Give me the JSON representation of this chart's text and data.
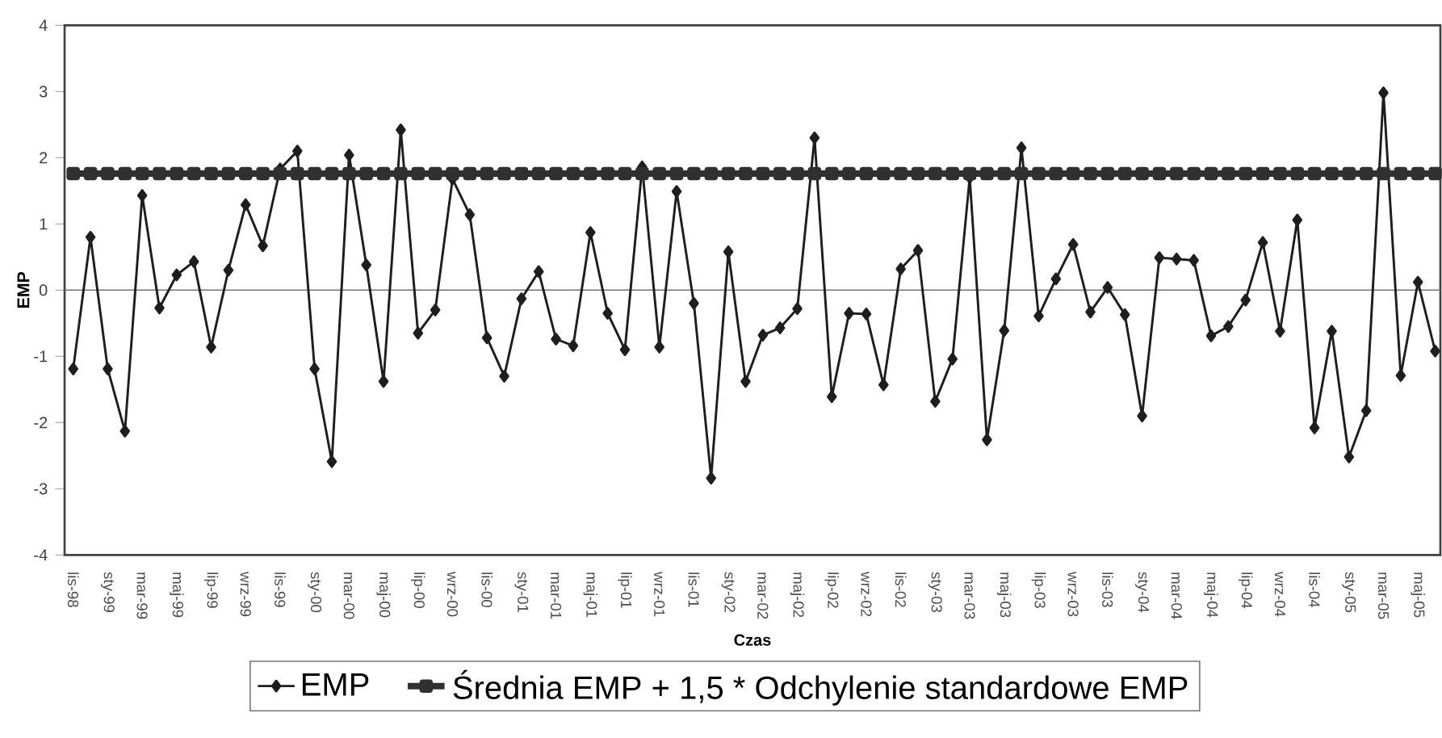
{
  "chart_data": {
    "type": "line",
    "xlabel": "Czas",
    "ylabel": "EMP",
    "categories": [
      "lis-98",
      null,
      "sty-99",
      null,
      "mar-99",
      null,
      "maj-99",
      null,
      "lip-99",
      null,
      "wrz-99",
      null,
      "lis-99",
      null,
      "sty-00",
      null,
      "mar-00",
      null,
      "maj-00",
      null,
      "lip-00",
      null,
      "wrz-00",
      null,
      "lis-00",
      null,
      "sty-01",
      null,
      "mar-01",
      null,
      "maj-01",
      null,
      "lip-01",
      null,
      "wrz-01",
      null,
      "lis-01",
      null,
      "sty-02",
      null,
      "mar-02",
      null,
      "maj-02",
      null,
      "lip-02",
      null,
      "wrz-02",
      null,
      "lis-02",
      null,
      "sty-03",
      null,
      "mar-03",
      null,
      "maj-03",
      null,
      "lip-03",
      null,
      "wrz-03",
      null,
      "lis-03",
      null,
      "sty-04",
      null,
      "mar-04",
      null,
      "maj-04",
      null,
      "lip-04",
      null,
      "wrz-04",
      null,
      "lis-04",
      null,
      "sty-05",
      null,
      "mar-05",
      null,
      "maj-05",
      null
    ],
    "series": [
      {
        "name": "EMP",
        "color": "#1e1e1e",
        "marker": "diamond",
        "values": [
          -1.19,
          0.8,
          -1.19,
          -2.13,
          1.43,
          -0.27,
          0.23,
          0.43,
          -0.86,
          0.3,
          1.29,
          0.67,
          1.83,
          2.1,
          -1.19,
          -2.59,
          2.04,
          0.38,
          -1.38,
          2.42,
          -0.65,
          -0.3,
          1.68,
          1.14,
          -0.72,
          -1.3,
          -0.13,
          0.28,
          -0.74,
          -0.84,
          0.87,
          -0.35,
          -0.9,
          1.86,
          -0.86,
          1.49,
          -0.2,
          -2.84,
          0.58,
          -1.38,
          -0.68,
          -0.57,
          -0.28,
          2.3,
          -1.61,
          -0.35,
          -0.36,
          -1.43,
          0.32,
          0.6,
          -1.68,
          -1.04,
          1.7,
          -2.26,
          -0.61,
          2.15,
          -0.39,
          0.17,
          0.69,
          -0.33,
          0.04,
          -0.37,
          -1.9,
          0.49,
          0.47,
          0.45,
          -0.69,
          -0.55,
          -0.15,
          0.72,
          -0.62,
          1.06,
          -2.08,
          -0.62,
          -2.52,
          -1.82,
          2.98,
          -1.29,
          0.12,
          -0.92
        ]
      },
      {
        "name": "Średnia EMP + 1,5 * Odchylenie standardowe EMP",
        "color": "#303030",
        "marker": "square",
        "values": [
          1.76,
          1.76,
          1.76,
          1.76,
          1.76,
          1.76,
          1.76,
          1.76,
          1.76,
          1.76,
          1.76,
          1.76,
          1.76,
          1.76,
          1.76,
          1.76,
          1.76,
          1.76,
          1.76,
          1.76,
          1.76,
          1.76,
          1.76,
          1.76,
          1.76,
          1.76,
          1.76,
          1.76,
          1.76,
          1.76,
          1.76,
          1.76,
          1.76,
          1.76,
          1.76,
          1.76,
          1.76,
          1.76,
          1.76,
          1.76,
          1.76,
          1.76,
          1.76,
          1.76,
          1.76,
          1.76,
          1.76,
          1.76,
          1.76,
          1.76,
          1.76,
          1.76,
          1.76,
          1.76,
          1.76,
          1.76,
          1.76,
          1.76,
          1.76,
          1.76,
          1.76,
          1.76,
          1.76,
          1.76,
          1.76,
          1.76,
          1.76,
          1.76,
          1.76,
          1.76,
          1.76,
          1.76,
          1.76,
          1.76,
          1.76,
          1.76,
          1.76,
          1.76,
          1.76,
          1.76
        ]
      }
    ],
    "ylim": [
      -4,
      4
    ],
    "yticks": [
      -4,
      -3,
      -2,
      -1,
      0,
      1,
      2,
      3,
      4
    ],
    "legend": "bottom"
  }
}
